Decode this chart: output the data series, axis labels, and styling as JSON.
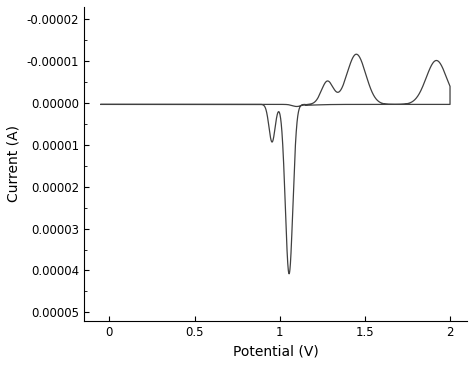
{
  "title": "",
  "xlabel": "Potential (V)",
  "ylabel": "Current (A)",
  "xlim": [
    -0.15,
    2.1
  ],
  "ylim": [
    5.2e-05,
    -2.3e-05
  ],
  "xticks": [
    0,
    0.5,
    1.0,
    1.5,
    2.0
  ],
  "yticks": [
    -2e-05,
    -1e-05,
    0.0,
    1e-05,
    2e-05,
    3e-05,
    4e-05,
    5e-05
  ],
  "line_color": "#404040",
  "line_width": 0.9,
  "background_color": "#ffffff",
  "figsize": [
    4.74,
    3.65
  ],
  "dpi": 100
}
